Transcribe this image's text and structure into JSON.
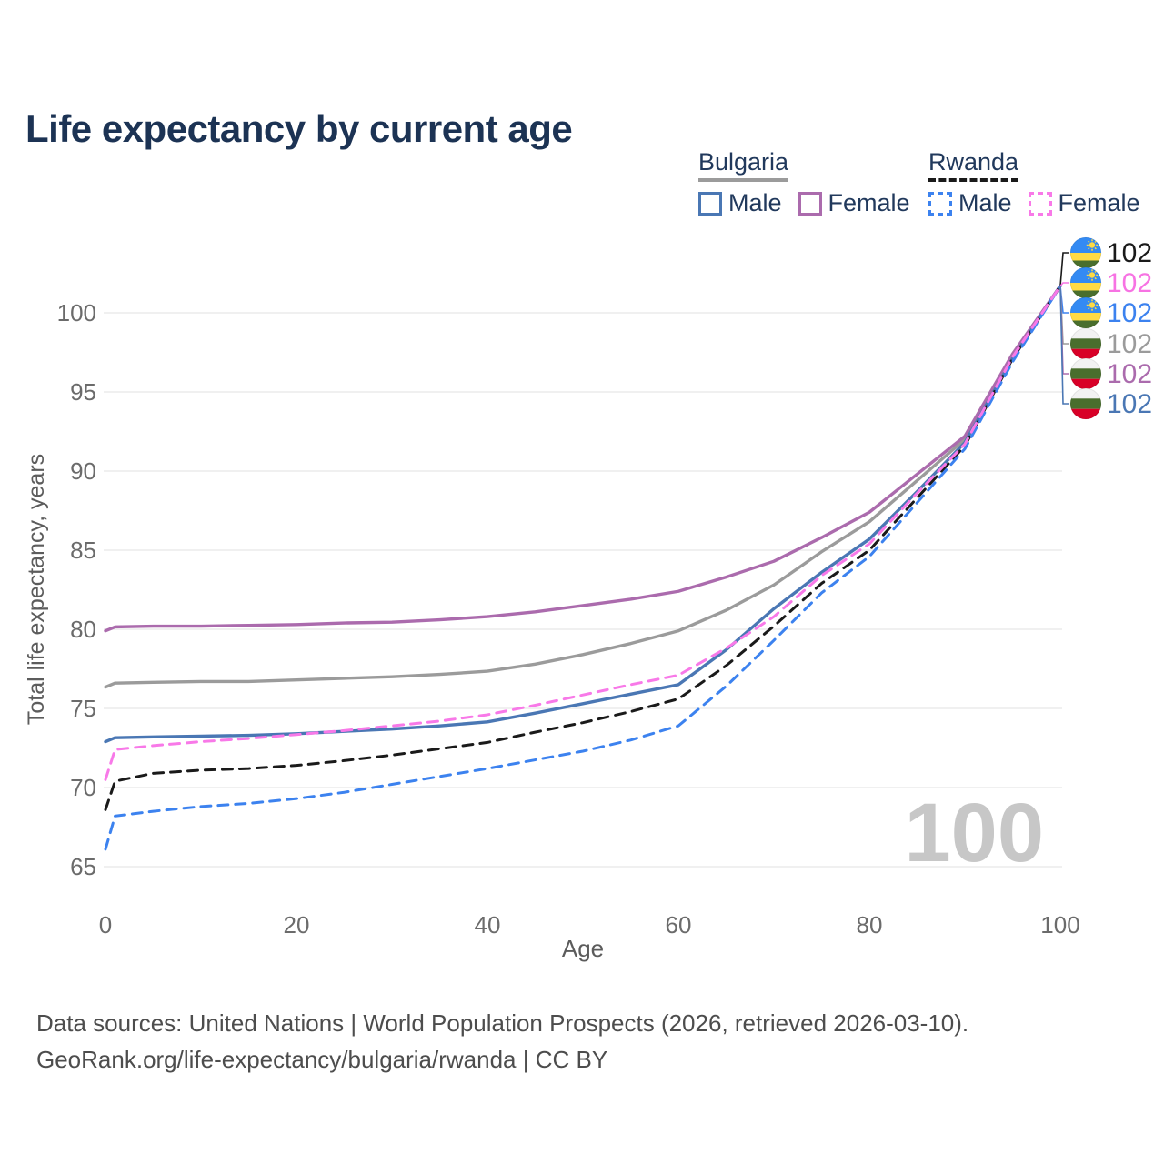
{
  "header": {
    "title": "Life expectancy by current age"
  },
  "legend": {
    "groups": [
      {
        "country": "Bulgaria",
        "line_style": "solid",
        "line_color": "#9b9b9b",
        "items": [
          {
            "label": "Male",
            "color": "#4a77b4",
            "dash": false
          },
          {
            "label": "Female",
            "color": "#ab6bad",
            "dash": false
          }
        ]
      },
      {
        "country": "Rwanda",
        "line_style": "dashed",
        "line_color": "#1a1a1a",
        "items": [
          {
            "label": "Male",
            "color": "#3c82ef",
            "dash": true
          },
          {
            "label": "Female",
            "color": "#f879e8",
            "dash": true
          }
        ]
      }
    ]
  },
  "chart_data": {
    "type": "line",
    "title": "Life expectancy by current age",
    "xlabel": "Age",
    "ylabel": "Total life expectancy, years",
    "xlim": [
      0,
      100
    ],
    "ylim": [
      65,
      102.5
    ],
    "xticks": [
      0,
      20,
      40,
      60,
      80,
      100
    ],
    "yticks": [
      65,
      70,
      75,
      80,
      85,
      90,
      95,
      100
    ],
    "grid": "horizontal",
    "watermark": "100",
    "x": [
      0,
      1,
      5,
      10,
      15,
      20,
      25,
      30,
      35,
      40,
      45,
      50,
      55,
      60,
      65,
      70,
      75,
      80,
      85,
      90,
      95,
      100
    ],
    "series": [
      {
        "name": "Bulgaria",
        "country": "Bulgaria",
        "sex": "both",
        "color": "#9b9b9b",
        "dash": false,
        "values": [
          76.35,
          76.6,
          76.65,
          76.7,
          76.7,
          76.8,
          76.9,
          77.0,
          77.15,
          77.35,
          77.8,
          78.4,
          79.1,
          79.9,
          81.2,
          82.8,
          84.9,
          86.8,
          89.4,
          92.0,
          97.3,
          101.7
        ]
      },
      {
        "name": "Bulgaria Female",
        "country": "Bulgaria",
        "sex": "female",
        "color": "#ab6bad",
        "dash": false,
        "values": [
          79.9,
          80.15,
          80.2,
          80.2,
          80.25,
          80.3,
          80.4,
          80.45,
          80.6,
          80.8,
          81.1,
          81.5,
          81.9,
          82.4,
          83.3,
          84.3,
          85.8,
          87.4,
          89.8,
          92.2,
          97.4,
          101.7
        ]
      },
      {
        "name": "Bulgaria Male",
        "country": "Bulgaria",
        "sex": "male",
        "color": "#4a77b4",
        "dash": false,
        "values": [
          72.9,
          73.15,
          73.2,
          73.25,
          73.3,
          73.4,
          73.55,
          73.7,
          73.9,
          74.15,
          74.7,
          75.3,
          75.9,
          76.5,
          78.7,
          81.3,
          83.6,
          85.7,
          88.7,
          91.8,
          97.1,
          101.7
        ]
      },
      {
        "name": "Rwanda",
        "country": "Rwanda",
        "sex": "both",
        "color": "#1a1a1a",
        "dash": true,
        "values": [
          68.6,
          70.4,
          70.9,
          71.1,
          71.2,
          71.4,
          71.7,
          72.05,
          72.45,
          72.85,
          73.5,
          74.1,
          74.8,
          75.6,
          77.7,
          80.2,
          82.9,
          85.0,
          88.3,
          91.6,
          97.1,
          101.7
        ]
      },
      {
        "name": "Rwanda Male",
        "country": "Rwanda",
        "sex": "male",
        "color": "#3c82ef",
        "dash": true,
        "values": [
          66.1,
          68.2,
          68.5,
          68.8,
          69.0,
          69.3,
          69.7,
          70.2,
          70.7,
          71.2,
          71.75,
          72.3,
          73.0,
          73.9,
          76.4,
          79.3,
          82.3,
          84.6,
          88.0,
          91.4,
          96.9,
          101.7
        ]
      },
      {
        "name": "Rwanda Female",
        "country": "Rwanda",
        "sex": "female",
        "color": "#f879e8",
        "dash": true,
        "values": [
          70.5,
          72.4,
          72.65,
          72.9,
          73.1,
          73.35,
          73.6,
          73.9,
          74.2,
          74.6,
          75.2,
          75.85,
          76.5,
          77.1,
          78.8,
          80.8,
          83.4,
          85.4,
          88.6,
          91.7,
          97.2,
          101.7
        ]
      }
    ],
    "legend_position": "top-right",
    "end_value_at_age_100": 102
  },
  "right_labels": [
    {
      "series": "Rwanda",
      "flag": "rwanda",
      "value": "102",
      "color": "#1a1a1a"
    },
    {
      "series": "Rwanda Female",
      "flag": "rwanda",
      "value": "102",
      "color": "#f773e3"
    },
    {
      "series": "Rwanda Male",
      "flag": "rwanda",
      "value": "102",
      "color": "#3c82ef"
    },
    {
      "series": "Bulgaria",
      "flag": "bulgaria",
      "value": "102",
      "color": "#9b9b9b"
    },
    {
      "series": "Bulgaria Female",
      "flag": "bulgaria",
      "value": "102",
      "color": "#ab6bad"
    },
    {
      "series": "Bulgaria Male",
      "flag": "bulgaria",
      "value": "102",
      "color": "#4a77b4"
    }
  ],
  "colors": {
    "title": "#1c3354",
    "axis_text": "#6b6b6b",
    "gridline": "#ececec",
    "watermark": "#c7c7c7",
    "flag_rwanda": {
      "blue": "#338AF3",
      "yellow": "#FFDA44",
      "green": "#496E2D"
    },
    "flag_bulgaria": {
      "white": "#F2F2F2",
      "green": "#496E2D",
      "red": "#D80027"
    }
  },
  "footer": {
    "line1": "Data sources: United Nations | World Population Prospects (2026, retrieved 2026-03-10).",
    "line2": "GeoRank.org/life-expectancy/bulgaria/rwanda | CC BY"
  }
}
